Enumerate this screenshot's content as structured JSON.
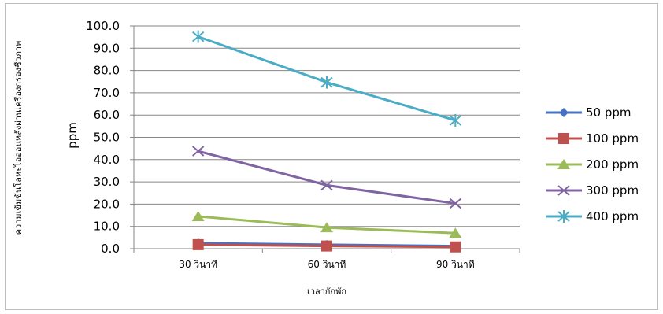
{
  "chart_data": {
    "type": "line",
    "title": "",
    "xlabel": "เวลากักพัก",
    "ylabel": "ความเข้มข้นโลหะไอออนหลังผ่านเครื่องกรองชีวภาพ",
    "ylabel_unit": "ppm",
    "categories": [
      "30 วินาที",
      "60 วินาที",
      "90 วินาที"
    ],
    "ylim": [
      0,
      100
    ],
    "yticks": [
      "0.0",
      "10.0",
      "20.0",
      "30.0",
      "40.0",
      "50.0",
      "60.0",
      "70.0",
      "80.0",
      "90.0",
      "100.0"
    ],
    "grid": true,
    "legend_position": "right",
    "series": [
      {
        "name": "50 ppm",
        "values": [
          2.5,
          1.8,
          1.2
        ],
        "color": "#4472C4",
        "marker": "diamond"
      },
      {
        "name": "100 ppm",
        "values": [
          1.8,
          1.2,
          0.8
        ],
        "color": "#C0504D",
        "marker": "square"
      },
      {
        "name": "200 ppm",
        "values": [
          14.5,
          9.5,
          7.0
        ],
        "color": "#9BBB59",
        "marker": "triangle"
      },
      {
        "name": "300 ppm",
        "values": [
          43.8,
          28.5,
          20.3
        ],
        "color": "#8064A2",
        "marker": "x"
      },
      {
        "name": "400 ppm",
        "values": [
          95.2,
          74.7,
          57.6
        ],
        "color": "#4BACC6",
        "marker": "star"
      }
    ]
  }
}
